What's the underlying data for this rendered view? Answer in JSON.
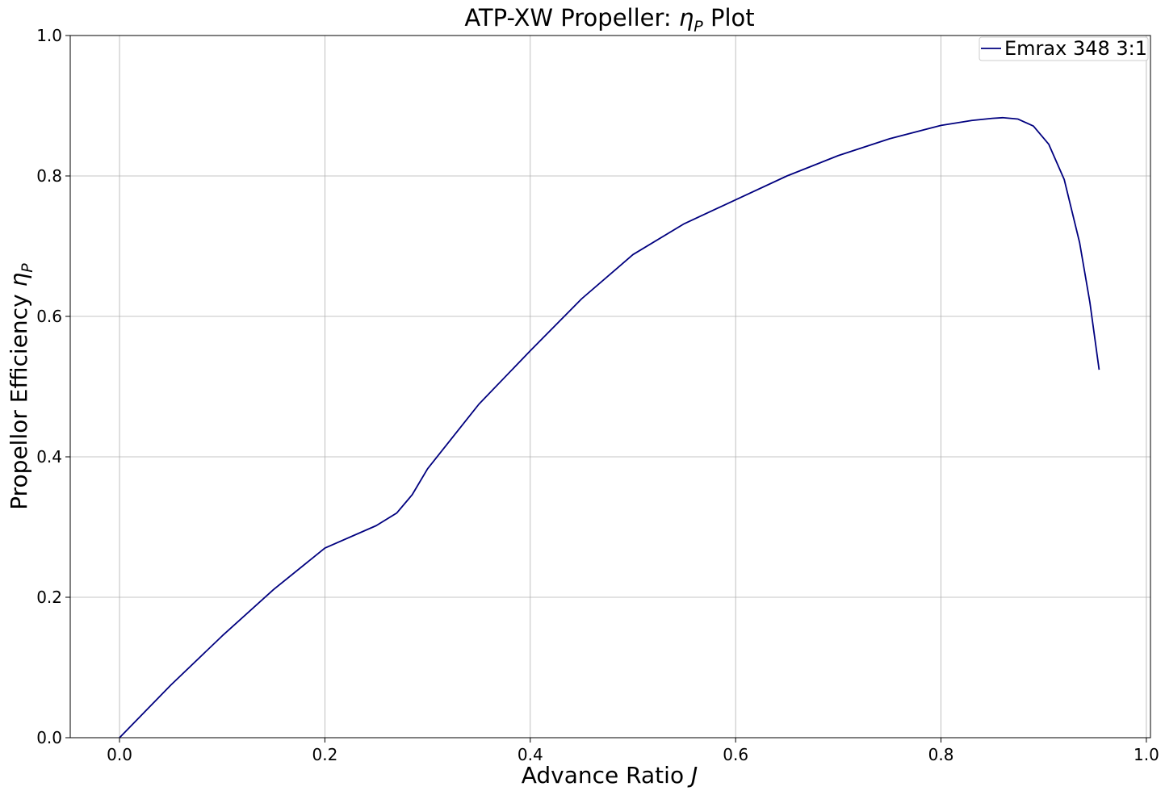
{
  "chart_data": {
    "type": "line",
    "title_prefix": "ATP-XW Propeller: ",
    "title_symbol": "η",
    "title_subscript": "P",
    "title_suffix": " Plot",
    "xlabel_text": "Advance Ratio ",
    "xlabel_symbol": "J",
    "ylabel_text": "Propellor Efficiency ",
    "ylabel_symbol": "η",
    "ylabel_subscript": "P",
    "xlim": [
      -0.048,
      1.004
    ],
    "ylim": [
      0.0,
      1.0
    ],
    "xticks": [
      0.0,
      0.2,
      0.4,
      0.6,
      0.8,
      1.0
    ],
    "xtick_labels": [
      "0.0",
      "0.2",
      "0.4",
      "0.6",
      "0.8",
      "1.0"
    ],
    "yticks": [
      0.0,
      0.2,
      0.4,
      0.6,
      0.8,
      1.0
    ],
    "ytick_labels": [
      "0.0",
      "0.2",
      "0.4",
      "0.6",
      "0.8",
      "1.0"
    ],
    "grid": true,
    "legend_position": "top-right",
    "series": [
      {
        "name": "Emrax 348 3:1",
        "color": "#00007f",
        "x": [
          0.0,
          0.05,
          0.1,
          0.15,
          0.2,
          0.25,
          0.27,
          0.285,
          0.3,
          0.35,
          0.4,
          0.45,
          0.5,
          0.55,
          0.6,
          0.65,
          0.7,
          0.75,
          0.8,
          0.83,
          0.85,
          0.86,
          0.875,
          0.89,
          0.905,
          0.92,
          0.935,
          0.945,
          0.954
        ],
        "y": [
          0.0,
          0.075,
          0.145,
          0.211,
          0.27,
          0.302,
          0.32,
          0.346,
          0.383,
          0.475,
          0.551,
          0.625,
          0.688,
          0.732,
          0.766,
          0.8,
          0.829,
          0.853,
          0.872,
          0.879,
          0.882,
          0.883,
          0.881,
          0.871,
          0.845,
          0.795,
          0.705,
          0.62,
          0.524
        ]
      }
    ]
  }
}
